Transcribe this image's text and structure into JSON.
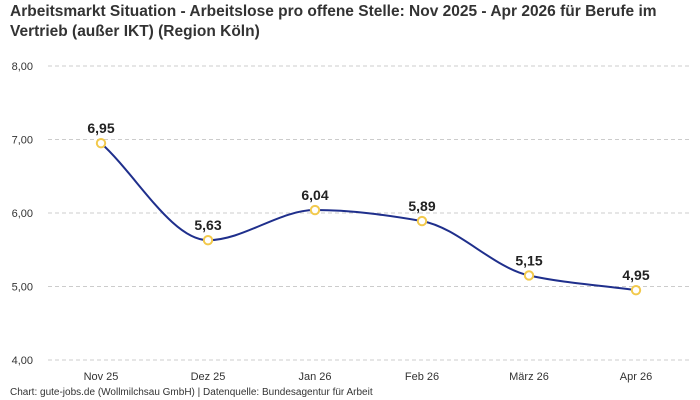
{
  "title": "Arbeitsmarkt Situation - Arbeitslose pro offene Stelle: Nov 2025 - Apr 2026 für Berufe im Vertrieb (außer IKT) (Region Köln)",
  "source": "Chart: gute-jobs.de (Wollmilchsau GmbH) | Datenquelle: Bundesagentur für Arbeit",
  "colors": {
    "line": "#1f2f8c",
    "marker_stroke": "#f2c94c",
    "marker_fill": "#ffffff",
    "grid": "#cccccc",
    "text": "#333333"
  },
  "chart_data": {
    "type": "line",
    "title": "Arbeitsmarkt Situation - Arbeitslose pro offene Stelle: Nov 2025 - Apr 2026 für Berufe im Vertrieb (außer IKT) (Region Köln)",
    "categories": [
      "Nov 25",
      "Dez 25",
      "Jan 26",
      "Feb 26",
      "März 26",
      "Apr 26"
    ],
    "values": [
      6.95,
      5.63,
      6.04,
      5.89,
      5.15,
      4.95
    ],
    "value_labels": [
      "6,95",
      "5,63",
      "6,04",
      "5,89",
      "5,15",
      "4,95"
    ],
    "y_ticks": [
      "4,00",
      "5,00",
      "6,00",
      "7,00",
      "8,00"
    ],
    "ylim": [
      4,
      8
    ],
    "xlabel": "",
    "ylabel": "",
    "grid": true,
    "smooth": true
  }
}
